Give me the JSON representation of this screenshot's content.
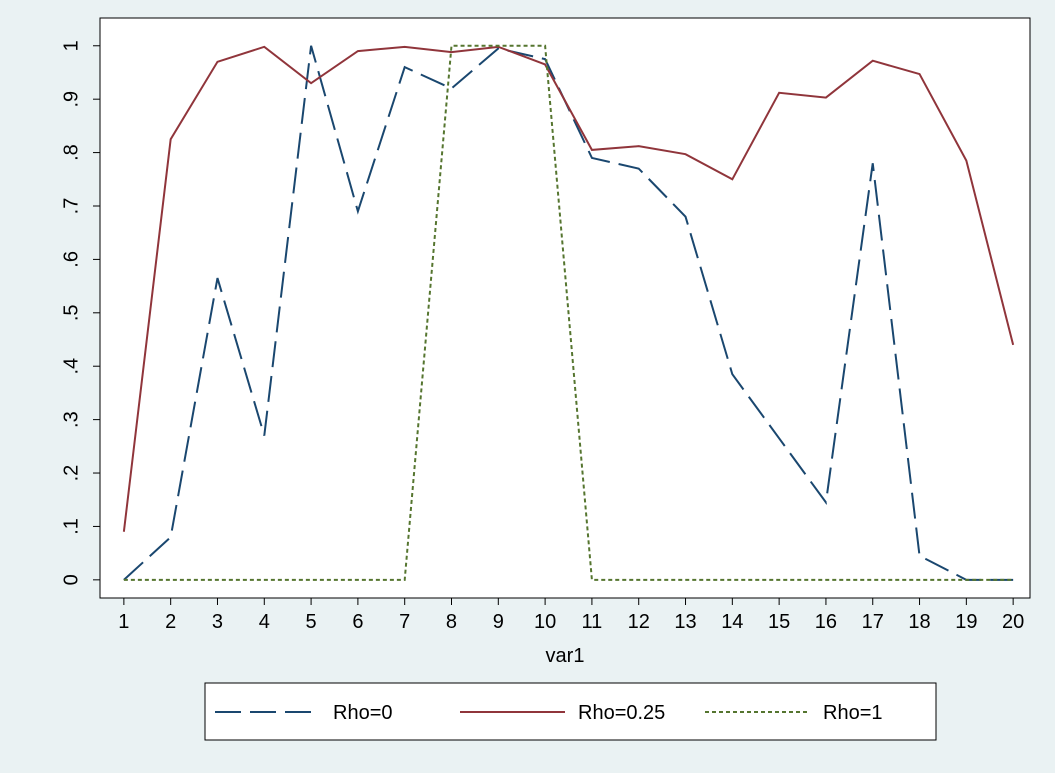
{
  "chart_data": {
    "type": "line",
    "x_label": "var1",
    "x": [
      1,
      2,
      3,
      4,
      5,
      6,
      7,
      8,
      9,
      10,
      11,
      12,
      13,
      14,
      15,
      16,
      17,
      18,
      19,
      20
    ],
    "series": [
      {
        "name": "Rho=0",
        "color": "#1a476f",
        "line_style": "long-dash",
        "values": [
          0,
          0.08,
          0.565,
          0.27,
          1.0,
          0.69,
          0.96,
          0.92,
          0.995,
          0.975,
          0.79,
          0.77,
          0.68,
          0.385,
          0.265,
          0.145,
          0.78,
          0.045,
          0,
          0
        ]
      },
      {
        "name": "Rho=0.25",
        "color": "#90353b",
        "line_style": "solid",
        "values": [
          0.09,
          0.825,
          0.97,
          0.998,
          0.93,
          0.99,
          0.998,
          0.988,
          0.998,
          0.965,
          0.805,
          0.812,
          0.797,
          0.75,
          0.912,
          0.903,
          0.972,
          0.947,
          0.785,
          0.44
        ]
      },
      {
        "name": "Rho=1",
        "color": "#55752f",
        "line_style": "short-dash",
        "values": [
          0,
          0,
          0,
          0,
          0,
          0,
          0,
          1,
          1,
          1,
          0,
          0,
          0,
          0,
          0,
          0,
          0,
          0,
          0,
          0
        ]
      }
    ],
    "xlim": [
      0.49,
      20.36
    ],
    "xticks": [
      1,
      2,
      3,
      4,
      5,
      6,
      7,
      8,
      9,
      10,
      11,
      12,
      13,
      14,
      15,
      16,
      17,
      18,
      19,
      20
    ],
    "ylim": [
      -0.034,
      1.052
    ],
    "yticks": [
      0,
      {
        "value": 0.1,
        "label": ".1"
      },
      {
        "value": 0.2,
        "label": ".2"
      },
      {
        "value": 0.3,
        "label": ".3"
      },
      {
        "value": 0.4,
        "label": ".4"
      },
      {
        "value": 0.5,
        "label": ".5"
      },
      {
        "value": 0.6,
        "label": ".6"
      },
      {
        "value": 0.7,
        "label": ".7"
      },
      {
        "value": 0.8,
        "label": ".8"
      },
      {
        "value": 0.9,
        "label": ".9"
      },
      1
    ],
    "grid": false,
    "legend_position": "bottom"
  }
}
